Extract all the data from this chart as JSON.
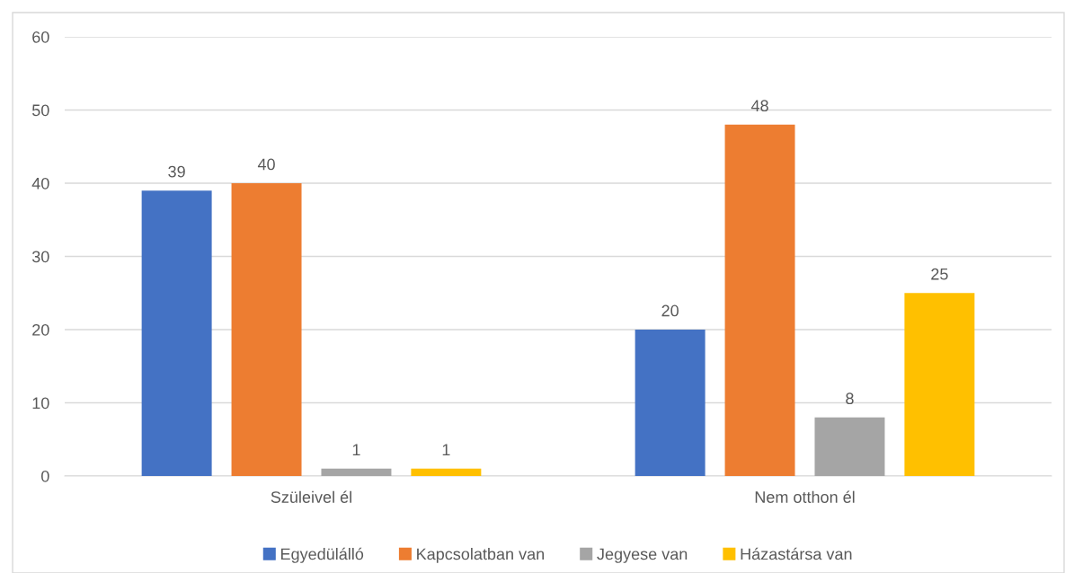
{
  "chart_data": {
    "type": "bar",
    "categories": [
      "Szüleivel él",
      "Nem otthon él"
    ],
    "series": [
      {
        "name": "Egyedülálló",
        "color": "#4472c4",
        "values": [
          39,
          20
        ]
      },
      {
        "name": "Kapcsolatban van",
        "color": "#ed7d31",
        "values": [
          40,
          48
        ]
      },
      {
        "name": "Jegyese van",
        "color": "#a5a5a5",
        "values": [
          1,
          8
        ]
      },
      {
        "name": "Házastársa van",
        "color": "#ffc000",
        "values": [
          1,
          25
        ]
      }
    ],
    "ylim": [
      0,
      60
    ],
    "yticks": [
      0,
      10,
      20,
      30,
      40,
      50,
      60
    ],
    "grid": "y",
    "legend": "bottom",
    "data_labels": true
  }
}
